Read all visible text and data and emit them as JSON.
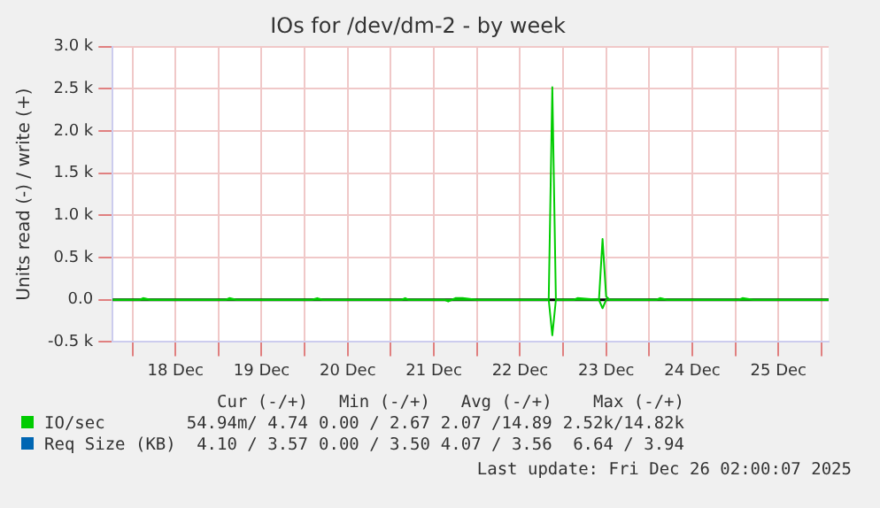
{
  "chart_data": {
    "type": "line",
    "title": "IOs for /dev/dm-2 - by week",
    "ylabel": "Units read (-) / write (+)",
    "xlim": [
      "2025-12-17T18:30",
      "2025-12-26T02:00"
    ],
    "xticks": [
      {
        "value": "2025-12-18T00:00",
        "label": null
      },
      {
        "value": "2025-12-18T12:00",
        "label": "18 Dec"
      },
      {
        "value": "2025-12-19T00:00",
        "label": null
      },
      {
        "value": "2025-12-19T12:00",
        "label": "19 Dec"
      },
      {
        "value": "2025-12-20T00:00",
        "label": null
      },
      {
        "value": "2025-12-20T12:00",
        "label": "20 Dec"
      },
      {
        "value": "2025-12-21T00:00",
        "label": null
      },
      {
        "value": "2025-12-21T12:00",
        "label": "21 Dec"
      },
      {
        "value": "2025-12-22T00:00",
        "label": null
      },
      {
        "value": "2025-12-22T12:00",
        "label": "22 Dec"
      },
      {
        "value": "2025-12-23T00:00",
        "label": null
      },
      {
        "value": "2025-12-23T12:00",
        "label": "23 Dec"
      },
      {
        "value": "2025-12-24T00:00",
        "label": null
      },
      {
        "value": "2025-12-24T12:00",
        "label": "24 Dec"
      },
      {
        "value": "2025-12-25T00:00",
        "label": null
      },
      {
        "value": "2025-12-25T12:00",
        "label": "25 Dec"
      },
      {
        "value": "2025-12-26T00:00",
        "label": null
      }
    ],
    "ylim": [
      -500,
      3000
    ],
    "yticks": [
      {
        "value": -500,
        "label": "-0.5 k"
      },
      {
        "value": 0,
        "label": "0.0"
      },
      {
        "value": 500,
        "label": "0.5 k"
      },
      {
        "value": 1000,
        "label": "1.0 k"
      },
      {
        "value": 1500,
        "label": "1.5 k"
      },
      {
        "value": 2000,
        "label": "2.0 k"
      },
      {
        "value": 2500,
        "label": "2.5 k"
      },
      {
        "value": 3000,
        "label": "3.0 k"
      }
    ],
    "series": [
      {
        "name": "Req Size (KB)",
        "color": "#0066b3"
      },
      {
        "color": "#00cc00",
        "x": [
          "2025-12-17T18:30",
          "2025-12-21T15:00",
          "2025-12-21T16:00",
          "2025-12-21T17:00",
          "2025-12-22T20:00",
          "2025-12-22T21:00",
          "2025-12-22T22:00",
          "2025-12-23T10:00",
          "2025-12-23T11:00",
          "2025-12-23T12:00",
          "2025-12-26T02:00"
        ],
        "values": [
          0,
          0,
          -20,
          0,
          0,
          -420,
          0,
          0,
          -100,
          0,
          0
        ]
      },
      {
        "name": "IO/sec",
        "color": "#00cc00",
        "x": [
          "2025-12-17T18:30",
          "2025-12-18T02:00",
          "2025-12-18T03:00",
          "2025-12-18T05:00",
          "2025-12-19T02:00",
          "2025-12-19T03:00",
          "2025-12-19T05:00",
          "2025-12-20T02:00",
          "2025-12-20T03:30",
          "2025-12-20T05:00",
          "2025-12-21T03:00",
          "2025-12-21T04:00",
          "2025-12-21T05:00",
          "2025-12-21T17:00",
          "2025-12-21T18:00",
          "2025-12-21T20:00",
          "2025-12-22T00:00",
          "2025-12-22T20:00",
          "2025-12-22T21:00",
          "2025-12-22T22:00",
          "2025-12-23T03:00",
          "2025-12-23T04:00",
          "2025-12-23T10:00",
          "2025-12-23T11:00",
          "2025-12-23T12:00",
          "2025-12-23T13:00",
          "2025-12-23T15:00",
          "2025-12-24T02:00",
          "2025-12-24T03:00",
          "2025-12-24T05:00",
          "2025-12-25T01:00",
          "2025-12-25T02:00",
          "2025-12-25T05:00",
          "2025-12-26T02:00"
        ],
        "values": [
          0,
          0,
          20,
          0,
          0,
          20,
          0,
          0,
          20,
          0,
          0,
          20,
          0,
          0,
          20,
          20,
          0,
          0,
          2520,
          0,
          0,
          20,
          0,
          720,
          40,
          0,
          0,
          0,
          20,
          0,
          0,
          20,
          0,
          0
        ]
      }
    ],
    "ref_lines": [
      {
        "axis": "y",
        "value": 0,
        "color": "#000000"
      }
    ],
    "grid": true,
    "legend": "bottom",
    "annotations": [
      "Cur (-/+)",
      "Min (-/+)",
      "Avg (-/+)",
      "Max (-/+)",
      "4.10 / 3.57",
      "0.00 / 3.50",
      "4.07 / 3.56",
      "6.64 / 3.94",
      "54.94m/ 4.74",
      "0.00 / 2.67",
      "2.07 /14.89",
      "2.52k/14.82k",
      "Last update: Fri Dec 26 02:00:07 2025"
    ]
  }
}
